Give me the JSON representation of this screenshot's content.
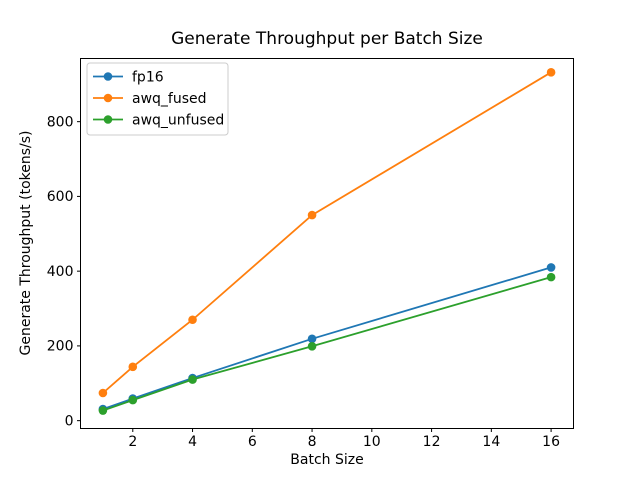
{
  "chart_data": {
    "type": "line",
    "title": "Generate Throughput per Batch Size",
    "xlabel": "Batch Size",
    "ylabel": "Generate Throughput (tokens/s)",
    "x": [
      1,
      2,
      4,
      8,
      16
    ],
    "series": [
      {
        "name": "fp16",
        "color": "#1f77b4",
        "values": [
          31,
          59,
          114,
          219,
          410
        ]
      },
      {
        "name": "awq_fused",
        "color": "#ff7f0e",
        "values": [
          74,
          144,
          270,
          550,
          932
        ]
      },
      {
        "name": "awq_unfused",
        "color": "#2ca02c",
        "values": [
          27,
          55,
          110,
          199,
          384
        ]
      }
    ],
    "x_ticks": [
      2,
      4,
      6,
      8,
      10,
      12,
      14,
      16
    ],
    "y_ticks": [
      0,
      200,
      400,
      600,
      800
    ],
    "xlim": [
      0.25,
      16.75
    ],
    "ylim": [
      -21,
      969
    ],
    "grid": false,
    "marker": "o",
    "legend_position": "upper left",
    "colors": {
      "spine": "#000000",
      "background": "#ffffff",
      "legend_border": "#cccccc",
      "legend_fill": "#ffffff"
    }
  }
}
